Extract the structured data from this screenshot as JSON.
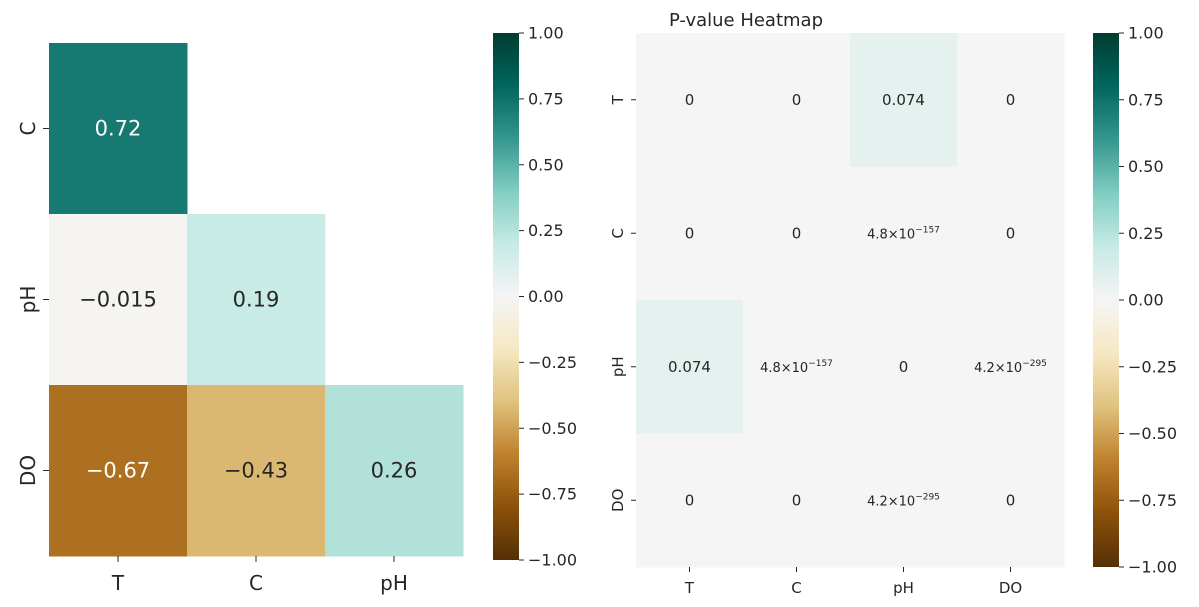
{
  "chart_data": [
    {
      "type": "heatmap",
      "title": "",
      "xlabel": "",
      "ylabel": "",
      "x_categories": [
        "T",
        "C",
        "pH"
      ],
      "y_categories": [
        "C",
        "pH",
        "DO"
      ],
      "cells": [
        {
          "row": 0,
          "col": 0,
          "value": 0.72,
          "label": "0.72"
        },
        {
          "row": 1,
          "col": 0,
          "value": -0.015,
          "label": "−0.015"
        },
        {
          "row": 1,
          "col": 1,
          "value": 0.19,
          "label": "0.19"
        },
        {
          "row": 2,
          "col": 0,
          "value": -0.67,
          "label": "−0.67"
        },
        {
          "row": 2,
          "col": 1,
          "value": -0.43,
          "label": "−0.43"
        },
        {
          "row": 2,
          "col": 2,
          "value": 0.26,
          "label": "0.26"
        }
      ],
      "colorbar": {
        "min": -1.0,
        "max": 1.0,
        "ticks": [
          1.0,
          0.75,
          0.5,
          0.25,
          0.0,
          -0.25,
          -0.5,
          -0.75,
          -1.0
        ],
        "tick_labels": [
          "1.00",
          "0.75",
          "0.50",
          "0.25",
          "0.00",
          "−0.25",
          "−0.50",
          "−0.75",
          "−1.00"
        ]
      },
      "colormap": "BrBG",
      "colormap_stops": [
        "#543005",
        "#8c510a",
        "#bf812d",
        "#dfc27d",
        "#f6e8c3",
        "#f5f5f5",
        "#c7eae5",
        "#80cdc1",
        "#35978f",
        "#01665e",
        "#003c30"
      ]
    },
    {
      "type": "heatmap",
      "title": "P-value Heatmap",
      "xlabel": "",
      "ylabel": "",
      "x_categories": [
        "T",
        "C",
        "pH",
        "DO"
      ],
      "y_categories": [
        "T",
        "C",
        "pH",
        "DO"
      ],
      "cells": [
        {
          "row": 0,
          "col": 0,
          "value": 0,
          "mantissa": "0",
          "exponent": ""
        },
        {
          "row": 0,
          "col": 1,
          "value": 0,
          "mantissa": "0",
          "exponent": ""
        },
        {
          "row": 0,
          "col": 2,
          "value": 0.074,
          "mantissa": "0.074",
          "exponent": ""
        },
        {
          "row": 0,
          "col": 3,
          "value": 0,
          "mantissa": "0",
          "exponent": ""
        },
        {
          "row": 1,
          "col": 0,
          "value": 0,
          "mantissa": "0",
          "exponent": ""
        },
        {
          "row": 1,
          "col": 1,
          "value": 0,
          "mantissa": "0",
          "exponent": ""
        },
        {
          "row": 1,
          "col": 2,
          "value": 4.8e-157,
          "mantissa": "4.8×10",
          "exponent": "−157"
        },
        {
          "row": 1,
          "col": 3,
          "value": 0,
          "mantissa": "0",
          "exponent": ""
        },
        {
          "row": 2,
          "col": 0,
          "value": 0.074,
          "mantissa": "0.074",
          "exponent": ""
        },
        {
          "row": 2,
          "col": 1,
          "value": 4.8e-157,
          "mantissa": "4.8×10",
          "exponent": "−157"
        },
        {
          "row": 2,
          "col": 2,
          "value": 0,
          "mantissa": "0",
          "exponent": ""
        },
        {
          "row": 2,
          "col": 3,
          "value": 4.2e-295,
          "mantissa": "4.2×10",
          "exponent": "−295"
        },
        {
          "row": 3,
          "col": 0,
          "value": 0,
          "mantissa": "0",
          "exponent": ""
        },
        {
          "row": 3,
          "col": 1,
          "value": 0,
          "mantissa": "0",
          "exponent": ""
        },
        {
          "row": 3,
          "col": 2,
          "value": 4.2e-295,
          "mantissa": "4.2×10",
          "exponent": "−295"
        },
        {
          "row": 3,
          "col": 3,
          "value": 0,
          "mantissa": "0",
          "exponent": ""
        }
      ],
      "colorbar": {
        "min": -1.0,
        "max": 1.0,
        "ticks": [
          1.0,
          0.75,
          0.5,
          0.25,
          0.0,
          -0.25,
          -0.5,
          -0.75,
          -1.0
        ],
        "tick_labels": [
          "1.00",
          "0.75",
          "0.50",
          "0.25",
          "0.00",
          "−0.25",
          "−0.50",
          "−0.75",
          "−1.00"
        ]
      },
      "colormap": "BrBG",
      "colormap_stops": [
        "#543005",
        "#8c510a",
        "#bf812d",
        "#dfc27d",
        "#f6e8c3",
        "#f5f5f5",
        "#c7eae5",
        "#80cdc1",
        "#35978f",
        "#01665e",
        "#003c30"
      ]
    }
  ]
}
